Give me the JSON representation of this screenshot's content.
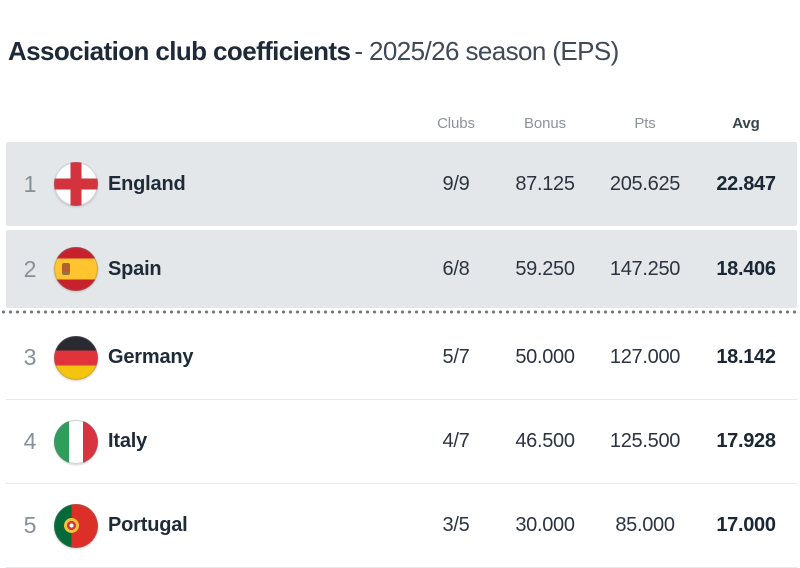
{
  "title": {
    "bold": "Association club coefficients",
    "regular": "- 2025/26 season (EPS)"
  },
  "table": {
    "headers": {
      "clubs": "Clubs",
      "bonus": "Bonus",
      "pts": "Pts",
      "avg": "Avg"
    },
    "cutoff_line_after_rank": 2,
    "rows": [
      {
        "rank": "1",
        "country": "England",
        "flag": "england",
        "clubs": "9/9",
        "bonus": "87.125",
        "pts": "205.625",
        "avg": "22.847",
        "highlighted": true
      },
      {
        "rank": "2",
        "country": "Spain",
        "flag": "spain",
        "clubs": "6/8",
        "bonus": "59.250",
        "pts": "147.250",
        "avg": "18.406",
        "highlighted": true
      },
      {
        "rank": "3",
        "country": "Germany",
        "flag": "germany",
        "clubs": "5/7",
        "bonus": "50.000",
        "pts": "127.000",
        "avg": "18.142",
        "highlighted": false
      },
      {
        "rank": "4",
        "country": "Italy",
        "flag": "italy",
        "clubs": "4/7",
        "bonus": "46.500",
        "pts": "125.500",
        "avg": "17.928",
        "highlighted": false
      },
      {
        "rank": "5",
        "country": "Portugal",
        "flag": "portugal",
        "clubs": "3/5",
        "bonus": "30.000",
        "pts": "85.000",
        "avg": "17.000",
        "highlighted": false
      }
    ]
  },
  "colors": {
    "highlight_row_bg": "#e4e7e9",
    "title_text": "#1e2a37",
    "muted_text": "#8b929b",
    "value_text": "#2b3440",
    "dotted_cutoff_line": "#737b85"
  }
}
